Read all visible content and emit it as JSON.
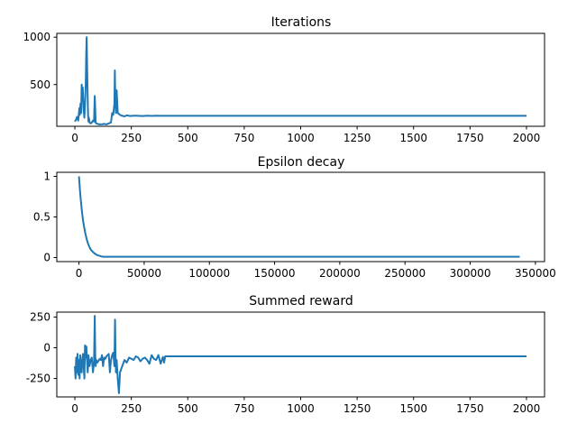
{
  "colors": {
    "series": "#1f77b4",
    "axes": "#000000",
    "background": "#ffffff"
  },
  "chart_data": [
    {
      "type": "line",
      "title": "Iterations",
      "xlabel": "",
      "ylabel": "",
      "grid": false,
      "xlim": [
        -80,
        2080
      ],
      "ylim": [
        60,
        1040
      ],
      "xticks": [
        0,
        250,
        500,
        750,
        1000,
        1250,
        1500,
        1750,
        2000
      ],
      "yticks": [
        500,
        1000
      ],
      "series": [
        {
          "x": [
            0,
            5,
            10,
            15,
            20,
            22,
            25,
            28,
            30,
            33,
            35,
            38,
            40,
            42,
            45,
            48,
            50,
            52,
            55,
            58,
            60,
            62,
            65,
            70,
            75,
            80,
            85,
            88,
            90,
            92,
            95,
            100,
            110,
            120,
            130,
            140,
            150,
            160,
            165,
            170,
            175,
            177,
            178,
            180,
            182,
            185,
            188,
            190,
            195,
            200,
            210,
            220,
            230,
            240,
            250,
            260,
            280,
            300,
            320,
            340,
            360,
            380,
            400,
            450,
            500,
            1000,
            1500,
            2000
          ],
          "values": [
            110,
            130,
            160,
            120,
            250,
            180,
            300,
            200,
            500,
            400,
            470,
            250,
            200,
            150,
            300,
            500,
            800,
            1000,
            600,
            200,
            110,
            150,
            100,
            90,
            100,
            120,
            110,
            380,
            250,
            100,
            90,
            85,
            80,
            82,
            85,
            80,
            90,
            100,
            200,
            180,
            300,
            650,
            500,
            350,
            200,
            440,
            300,
            200,
            190,
            180,
            170,
            165,
            175,
            170,
            168,
            172,
            170,
            168,
            172,
            169,
            171,
            170,
            170,
            170,
            170,
            170,
            170,
            170
          ]
        }
      ]
    },
    {
      "type": "line",
      "title": "Epsilon decay",
      "xlabel": "",
      "ylabel": "",
      "grid": false,
      "xlim": [
        -17000,
        357000
      ],
      "ylim": [
        -0.05,
        1.05
      ],
      "xticks": [
        0,
        50000,
        100000,
        150000,
        200000,
        250000,
        300000,
        350000
      ],
      "yticks": [
        0.0,
        0.5,
        1.0
      ],
      "series": [
        {
          "x": [
            0,
            1000,
            2000,
            3000,
            4000,
            5000,
            6000,
            7000,
            8000,
            9000,
            10000,
            12000,
            14000,
            16000,
            18000,
            20000,
            25000,
            30000,
            50000,
            100000,
            200000,
            338000
          ],
          "values": [
            1.0,
            0.78,
            0.61,
            0.47,
            0.37,
            0.29,
            0.22,
            0.17,
            0.13,
            0.1,
            0.08,
            0.05,
            0.03,
            0.02,
            0.01,
            0.01,
            0.01,
            0.01,
            0.01,
            0.01,
            0.01,
            0.01
          ]
        }
      ]
    },
    {
      "type": "line",
      "title": "Summed reward",
      "xlabel": "",
      "ylabel": "",
      "grid": false,
      "xlim": [
        -80,
        2080
      ],
      "ylim": [
        -400,
        290
      ],
      "xticks": [
        0,
        250,
        500,
        750,
        1000,
        1250,
        1500,
        1750,
        2000
      ],
      "yticks": [
        -250,
        0,
        250
      ],
      "series": [
        {
          "x": [
            0,
            3,
            6,
            9,
            12,
            15,
            18,
            21,
            24,
            27,
            30,
            33,
            36,
            39,
            42,
            45,
            48,
            51,
            54,
            57,
            60,
            65,
            70,
            75,
            80,
            85,
            88,
            90,
            92,
            95,
            100,
            110,
            115,
            120,
            125,
            130,
            135,
            140,
            150,
            155,
            160,
            165,
            170,
            175,
            178,
            180,
            182,
            185,
            190,
            195,
            200,
            210,
            220,
            230,
            240,
            250,
            260,
            270,
            280,
            290,
            300,
            310,
            320,
            330,
            340,
            350,
            360,
            370,
            380,
            390,
            395,
            400,
            450,
            500,
            1000,
            1500,
            2000
          ],
          "values": [
            -150,
            -250,
            -80,
            -200,
            -50,
            -220,
            -100,
            -250,
            -60,
            -180,
            -200,
            -100,
            -50,
            -150,
            -250,
            20,
            -80,
            10,
            -120,
            -200,
            -60,
            -150,
            -100,
            -80,
            -200,
            -120,
            260,
            -50,
            -150,
            -100,
            -120,
            -90,
            -100,
            -60,
            -150,
            -80,
            -90,
            -70,
            -50,
            -200,
            -100,
            -60,
            -40,
            -150,
            230,
            -50,
            -200,
            -100,
            -250,
            -370,
            -200,
            -150,
            -100,
            -120,
            -80,
            -90,
            -100,
            -70,
            -80,
            -110,
            -90,
            -80,
            -100,
            -130,
            -60,
            -90,
            -100,
            -60,
            -130,
            -75,
            -120,
            -70,
            -70,
            -70,
            -70,
            -70,
            -70
          ]
        }
      ]
    }
  ]
}
